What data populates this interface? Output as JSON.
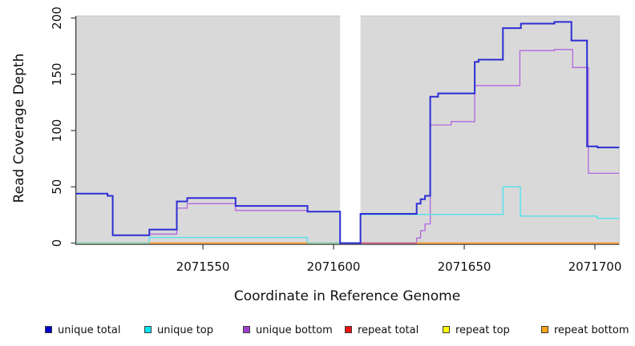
{
  "chart_data": {
    "type": "line",
    "subtype": "step",
    "title": "",
    "xlabel": "Coordinate in Reference Genome",
    "ylabel": "Read Coverage Depth",
    "xlim": [
      2071501.5,
      2071709.3
    ],
    "ylim": [
      0,
      202
    ],
    "x_ticks": [
      2071550,
      2071600,
      2071650,
      2071700
    ],
    "x_tick_labels": [
      "2071550",
      "2071600",
      "2071650",
      "2071700"
    ],
    "y_ticks": [
      0,
      50,
      100,
      150,
      200
    ],
    "y_tick_labels": [
      "0",
      "50",
      "100",
      "150",
      "200"
    ],
    "grid": false,
    "panel_bg": "#d9d9d9",
    "panel_border": "#c2c2c2",
    "axis_color": "#3a3a3a",
    "no_data_region": {
      "from": 2071602.5,
      "to": 2071610.3,
      "color": "#ffffff"
    },
    "series": [
      {
        "name": "unique bottom",
        "color": "#b266dd",
        "width": 1.3,
        "points": [
          [
            2071501.5,
            44
          ],
          [
            2071513.5,
            44
          ],
          [
            2071513.5,
            42
          ],
          [
            2071515.5,
            42
          ],
          [
            2071515.5,
            7
          ],
          [
            2071529.5,
            7
          ],
          [
            2071529.5,
            8
          ],
          [
            2071540,
            8
          ],
          [
            2071540,
            31
          ],
          [
            2071544,
            31
          ],
          [
            2071544,
            35
          ],
          [
            2071562.5,
            35
          ],
          [
            2071562.5,
            29
          ],
          [
            2071590,
            29
          ],
          [
            2071590,
            28
          ],
          [
            2071602.5,
            28
          ],
          [
            2071602.5,
            0
          ],
          [
            2071631.8,
            0
          ],
          [
            2071631.8,
            4.5
          ],
          [
            2071633.3,
            4.5
          ],
          [
            2071633.3,
            11
          ],
          [
            2071635,
            11
          ],
          [
            2071635,
            17
          ],
          [
            2071637,
            17
          ],
          [
            2071637,
            105
          ],
          [
            2071645,
            105
          ],
          [
            2071645,
            108
          ],
          [
            2071654,
            108
          ],
          [
            2071654,
            140
          ],
          [
            2071671.3,
            140
          ],
          [
            2071671.3,
            171
          ],
          [
            2071684.5,
            171
          ],
          [
            2071684.5,
            172
          ],
          [
            2071691.5,
            172
          ],
          [
            2071691.5,
            156
          ],
          [
            2071697.5,
            156
          ],
          [
            2071697.5,
            62
          ],
          [
            2071709.3,
            62
          ]
        ]
      },
      {
        "name": "unique top",
        "color": "#5ce0ea",
        "width": 1.5,
        "points": [
          [
            2071501.5,
            0
          ],
          [
            2071529.5,
            0
          ],
          [
            2071529.5,
            5
          ],
          [
            2071590,
            5
          ],
          [
            2071590,
            0
          ],
          [
            2071610.3,
            0
          ],
          [
            2071610.3,
            25.5
          ],
          [
            2071664.8,
            25.5
          ],
          [
            2071664.8,
            50
          ],
          [
            2071671.5,
            50
          ],
          [
            2071671.5,
            24
          ],
          [
            2071700.9,
            24
          ],
          [
            2071700.9,
            22
          ],
          [
            2071709.3,
            22
          ]
        ]
      },
      {
        "name": "repeat total",
        "color": "#ee1111",
        "width": 1.5,
        "points": [
          [
            2071501.5,
            0
          ],
          [
            2071709.3,
            0
          ]
        ]
      },
      {
        "name": "repeat top",
        "color": "#ffff00",
        "width": 1.5,
        "points": [
          [
            2071501.5,
            0
          ],
          [
            2071709.3,
            0
          ]
        ]
      },
      {
        "name": "repeat bottom",
        "color": "#ff9e2b",
        "width": 1.8,
        "points": [
          [
            2071501.5,
            0
          ],
          [
            2071709.3,
            0
          ]
        ]
      },
      {
        "name": "unique total",
        "color": "#2d2dd4",
        "width": 2,
        "points": [
          [
            2071501.5,
            44
          ],
          [
            2071513.5,
            44
          ],
          [
            2071513.5,
            42
          ],
          [
            2071515.5,
            42
          ],
          [
            2071515.5,
            7
          ],
          [
            2071529.5,
            7
          ],
          [
            2071529.5,
            12
          ],
          [
            2071540,
            12
          ],
          [
            2071540,
            37
          ],
          [
            2071544,
            37
          ],
          [
            2071544,
            40
          ],
          [
            2071562.5,
            40
          ],
          [
            2071562.5,
            33
          ],
          [
            2071590,
            33
          ],
          [
            2071590,
            28
          ],
          [
            2071602.5,
            28
          ],
          [
            2071602.5,
            0
          ],
          [
            2071610.3,
            0
          ],
          [
            2071610.3,
            26
          ],
          [
            2071631.8,
            26
          ],
          [
            2071631.8,
            35
          ],
          [
            2071633.3,
            35
          ],
          [
            2071633.3,
            39
          ],
          [
            2071635,
            39
          ],
          [
            2071635,
            42
          ],
          [
            2071637,
            42
          ],
          [
            2071637,
            130
          ],
          [
            2071640,
            130
          ],
          [
            2071640,
            133
          ],
          [
            2071654,
            133
          ],
          [
            2071654,
            161
          ],
          [
            2071655.5,
            161
          ],
          [
            2071655.5,
            163
          ],
          [
            2071664.8,
            163
          ],
          [
            2071664.8,
            191
          ],
          [
            2071671.7,
            191
          ],
          [
            2071671.7,
            195
          ],
          [
            2071684.5,
            195
          ],
          [
            2071684.5,
            196.5
          ],
          [
            2071691,
            196.5
          ],
          [
            2071691,
            180
          ],
          [
            2071697,
            180
          ],
          [
            2071697,
            86
          ],
          [
            2071701,
            86
          ],
          [
            2071701,
            85
          ],
          [
            2071709.3,
            85
          ]
        ]
      }
    ],
    "baseline_segments": [
      {
        "from": 2071501.5,
        "to": 2071529.5,
        "color": "#8fd2a4"
      },
      {
        "from": 2071529.5,
        "to": 2071590,
        "color": "#ff9e2b"
      },
      {
        "from": 2071590,
        "to": 2071602.5,
        "color": "#8fd2a4"
      },
      {
        "from": 2071610.3,
        "to": 2071631.8,
        "color": "#d05f8a"
      },
      {
        "from": 2071631.8,
        "to": 2071709.3,
        "color": "#ff9e2b"
      }
    ],
    "legend": {
      "position": "bottom",
      "items": [
        {
          "label": "unique total",
          "color": "#0000cc"
        },
        {
          "label": "unique top",
          "color": "#00e6f0"
        },
        {
          "label": "unique bottom",
          "color": "#9e3fd0"
        },
        {
          "label": "repeat total",
          "color": "#ee1111"
        },
        {
          "label": "repeat top",
          "color": "#ffff00"
        },
        {
          "label": "repeat bottom",
          "color": "#ffa517"
        }
      ]
    }
  }
}
